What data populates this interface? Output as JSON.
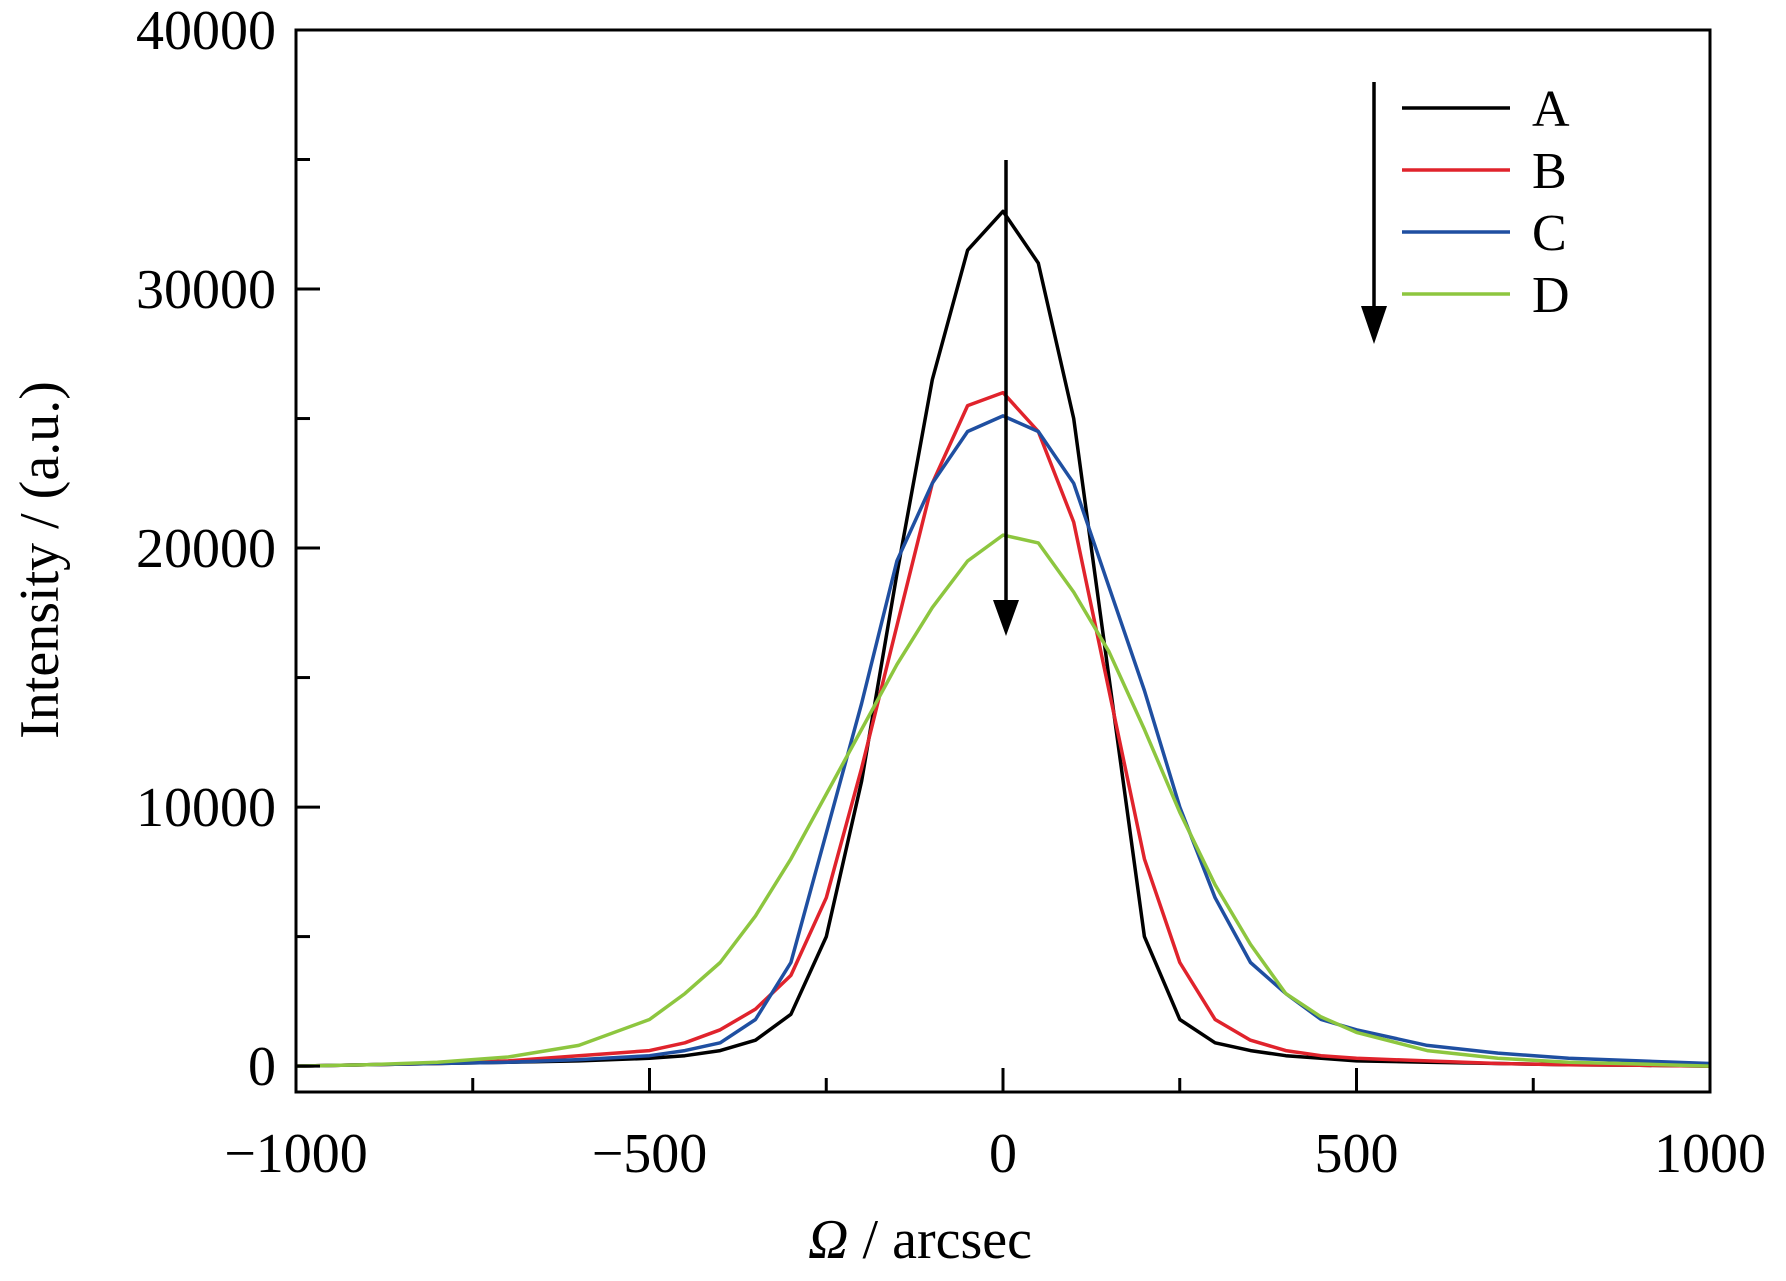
{
  "chart_data": {
    "type": "line",
    "xlabel_symbol": "Ω",
    "xlabel_unit": " / arcsec",
    "ylabel": "Intensity / (a.u.)",
    "xlim": [
      -1000,
      1000
    ],
    "ylim": [
      -1000,
      40000
    ],
    "xticks": [
      -1000,
      -500,
      0,
      500,
      1000
    ],
    "xtick_labels": [
      "−1000",
      "−500",
      "0",
      "500",
      "1000"
    ],
    "yticks": [
      0,
      10000,
      20000,
      30000,
      40000
    ],
    "ytick_labels": [
      "0",
      "10000",
      "20000",
      "30000",
      "40000"
    ],
    "grid": false,
    "legend_position": "top-right",
    "series": [
      {
        "name": "A",
        "color": "#000000",
        "x": [
          -1000,
          -900,
          -800,
          -700,
          -600,
          -500,
          -450,
          -400,
          -350,
          -300,
          -250,
          -200,
          -150,
          -100,
          -50,
          0,
          50,
          100,
          150,
          200,
          250,
          300,
          350,
          400,
          450,
          500,
          600,
          700,
          800,
          900,
          1000
        ],
        "y": [
          0,
          50,
          100,
          150,
          200,
          300,
          400,
          600,
          1000,
          2000,
          5000,
          11000,
          19000,
          26500,
          31500,
          33000,
          31000,
          25000,
          15000,
          5000,
          1800,
          900,
          600,
          400,
          300,
          200,
          150,
          100,
          50,
          30,
          0
        ]
      },
      {
        "name": "B",
        "color": "#e0232c",
        "x": [
          -1000,
          -900,
          -800,
          -700,
          -600,
          -500,
          -450,
          -400,
          -350,
          -300,
          -250,
          -200,
          -150,
          -100,
          -50,
          0,
          50,
          100,
          150,
          200,
          250,
          300,
          350,
          400,
          450,
          500,
          600,
          700,
          800,
          900,
          1000
        ],
        "y": [
          0,
          50,
          100,
          200,
          400,
          600,
          900,
          1400,
          2200,
          3500,
          6500,
          11500,
          17000,
          22500,
          25500,
          26000,
          24500,
          21000,
          14500,
          8000,
          4000,
          1800,
          1000,
          600,
          400,
          300,
          200,
          100,
          50,
          30,
          0
        ]
      },
      {
        "name": "C",
        "color": "#1f4fa1",
        "x": [
          -1000,
          -900,
          -800,
          -700,
          -600,
          -500,
          -450,
          -400,
          -350,
          -300,
          -250,
          -200,
          -150,
          -100,
          -50,
          0,
          50,
          100,
          150,
          200,
          250,
          300,
          350,
          400,
          450,
          500,
          600,
          700,
          800,
          900,
          1000
        ],
        "y": [
          0,
          50,
          100,
          150,
          250,
          400,
          600,
          900,
          1800,
          4000,
          9000,
          14000,
          19500,
          22500,
          24500,
          25100,
          24500,
          22500,
          18500,
          14500,
          10000,
          6500,
          4000,
          2800,
          1800,
          1400,
          800,
          500,
          300,
          200,
          100
        ]
      },
      {
        "name": "D",
        "color": "#8dc63f",
        "x": [
          -1000,
          -900,
          -800,
          -700,
          -600,
          -500,
          -450,
          -400,
          -350,
          -300,
          -250,
          -200,
          -150,
          -100,
          -50,
          0,
          50,
          100,
          150,
          200,
          250,
          300,
          350,
          400,
          450,
          500,
          600,
          700,
          800,
          900,
          1000
        ],
        "y": [
          0,
          50,
          150,
          350,
          800,
          1800,
          2800,
          4000,
          5800,
          8000,
          10500,
          13000,
          15500,
          17700,
          19500,
          20500,
          20200,
          18300,
          16000,
          13000,
          9800,
          7000,
          4700,
          2800,
          1900,
          1300,
          600,
          300,
          150,
          80,
          0
        ]
      }
    ]
  }
}
